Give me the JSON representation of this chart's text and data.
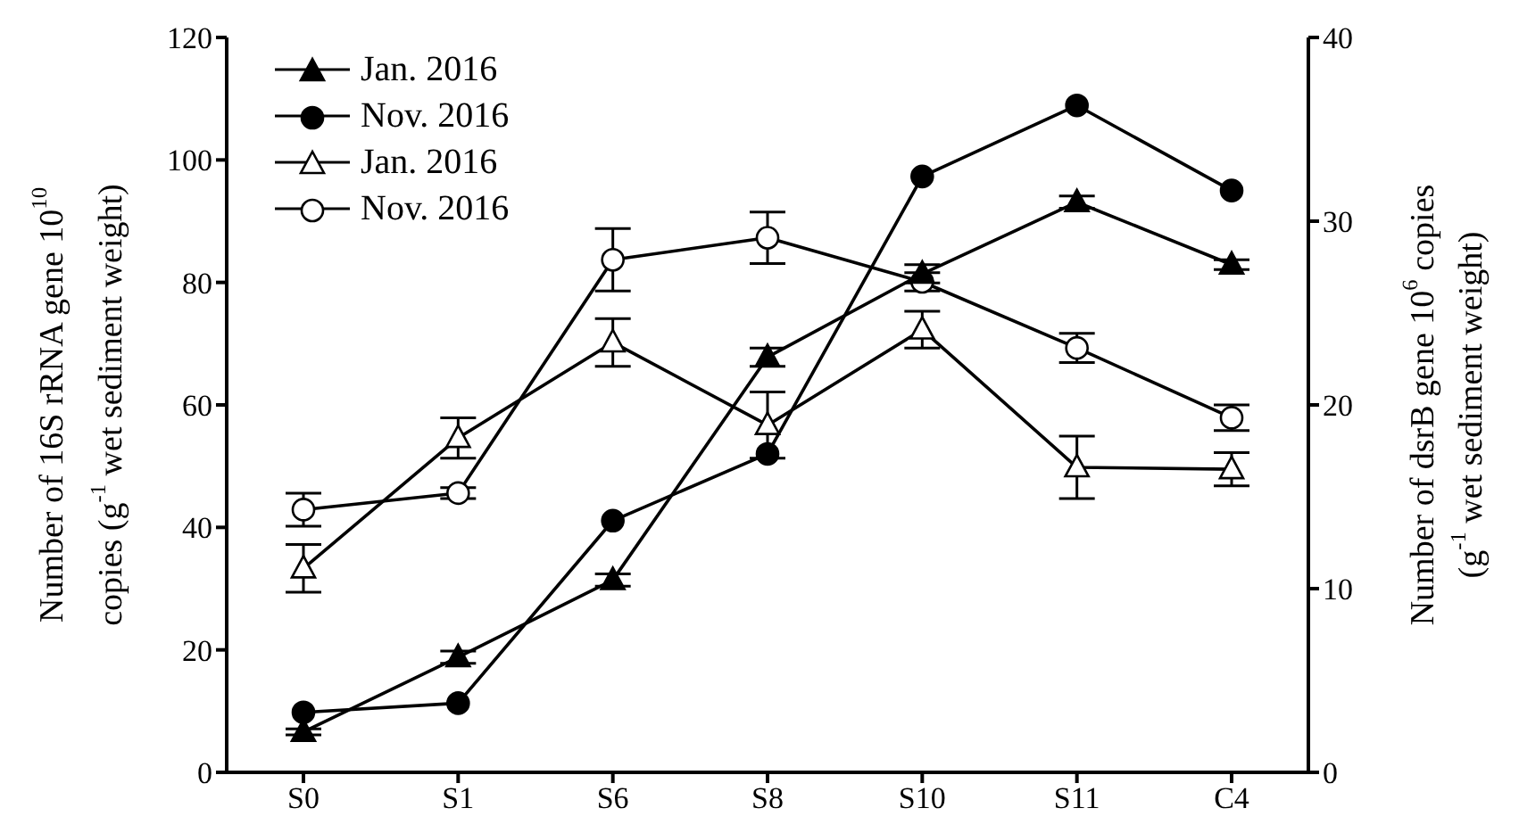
{
  "chart_data": {
    "type": "line",
    "categories": [
      "S0",
      "S1",
      "S6",
      "S8",
      "S10",
      "S11",
      "C4"
    ],
    "ylabel": "Number of 16S rRNA gene 10$^{10}$\ncopies (g$^{-1}$ wet sediment weight)",
    "y2label": "Number of dsrB gene 10$^{6}$ copies\n(g$^{-1}$ wet sediment weight)",
    "ylim": [
      0,
      120
    ],
    "yticks": [
      0,
      20,
      40,
      60,
      80,
      100,
      120
    ],
    "y2lim": [
      0,
      40
    ],
    "y2ticks": [
      0,
      10,
      20,
      30,
      40
    ],
    "legend": "top left",
    "series": [
      {
        "name": "Jan. 2016",
        "color": "#000000",
        "marker": "triangle",
        "values": [
          6.6,
          18.8,
          31.4,
          67.8,
          81.4,
          93.1,
          82.9
        ],
        "errors": [
          0.5,
          1,
          1,
          1.5,
          1.5,
          1,
          0.8
        ]
      },
      {
        "name": "Nov. 2016",
        "color": "#000000",
        "marker": "circle",
        "values": [
          9.8,
          11.3,
          41.1,
          52.0,
          97.3,
          108.9,
          95.0
        ]
      },
      {
        "name": "Jan. 2016",
        "color": "#000000",
        "marker": "triangle",
        "axis": "y2",
        "values": [
          11.1,
          18.2,
          23.4,
          18.9,
          24.1,
          16.6,
          16.5
        ],
        "errors": [
          1.3,
          1.1,
          1.3,
          1.8,
          1.0,
          1.7,
          0.9
        ]
      },
      {
        "name": "Nov. 2016",
        "color": "#000000",
        "marker": "circle",
        "axis": "y2",
        "values": [
          14.3,
          15.2,
          27.9,
          29.1,
          26.7,
          23.1,
          19.3
        ],
        "errors": [
          0.9,
          0.3,
          1.7,
          1.4,
          0.5,
          0.8,
          0.7
        ]
      }
    ]
  }
}
